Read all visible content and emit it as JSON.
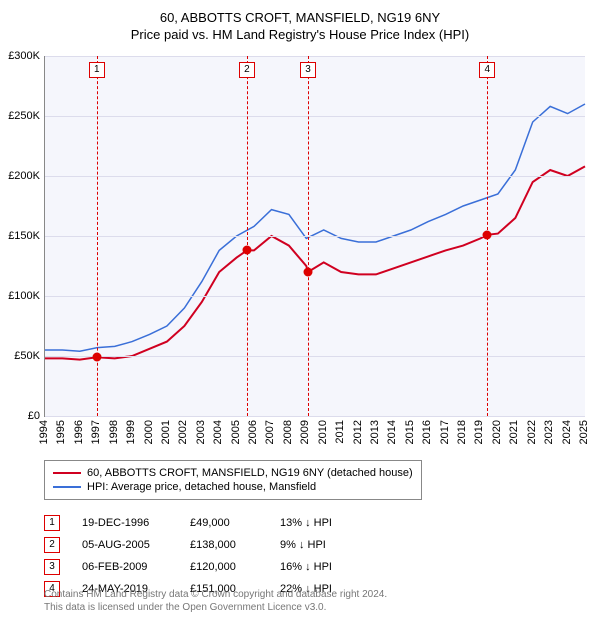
{
  "title": "60, ABBOTTS CROFT, MANSFIELD, NG19 6NY",
  "subtitle": "Price paid vs. HM Land Registry's House Price Index (HPI)",
  "chart": {
    "type": "line",
    "background_color": "#f5f6fc",
    "grid_color": "#dcdcec",
    "ylim": [
      0,
      300000
    ],
    "ytick_step": 50000,
    "yticks": [
      "£0",
      "£50K",
      "£100K",
      "£150K",
      "£200K",
      "£250K",
      "£300K"
    ],
    "xlim": [
      1994,
      2025
    ],
    "xticks": [
      1994,
      1995,
      1996,
      1997,
      1998,
      1999,
      2000,
      2001,
      2002,
      2003,
      2004,
      2005,
      2006,
      2007,
      2008,
      2009,
      2010,
      2011,
      2012,
      2013,
      2014,
      2015,
      2016,
      2017,
      2018,
      2019,
      2020,
      2021,
      2022,
      2023,
      2024,
      2025
    ],
    "label_fontsize": 11,
    "series": [
      {
        "name": "60, ABBOTTS CROFT, MANSFIELD, NG19 6NY (detached house)",
        "color": "#d00020",
        "line_width": 2,
        "points": [
          [
            1994,
            48000
          ],
          [
            1995,
            48000
          ],
          [
            1996,
            47000
          ],
          [
            1996.97,
            49000
          ],
          [
            1998,
            48000
          ],
          [
            1999,
            50000
          ],
          [
            2000,
            56000
          ],
          [
            2001,
            62000
          ],
          [
            2002,
            75000
          ],
          [
            2003,
            95000
          ],
          [
            2004,
            120000
          ],
          [
            2005,
            132000
          ],
          [
            2005.59,
            138000
          ],
          [
            2006,
            138000
          ],
          [
            2007,
            150000
          ],
          [
            2008,
            142000
          ],
          [
            2009,
            125000
          ],
          [
            2009.1,
            120000
          ],
          [
            2010,
            128000
          ],
          [
            2011,
            120000
          ],
          [
            2012,
            118000
          ],
          [
            2013,
            118000
          ],
          [
            2014,
            123000
          ],
          [
            2015,
            128000
          ],
          [
            2016,
            133000
          ],
          [
            2017,
            138000
          ],
          [
            2018,
            142000
          ],
          [
            2019,
            148000
          ],
          [
            2019.39,
            151000
          ],
          [
            2020,
            152000
          ],
          [
            2021,
            165000
          ],
          [
            2022,
            195000
          ],
          [
            2023,
            205000
          ],
          [
            2024,
            200000
          ],
          [
            2025,
            208000
          ]
        ]
      },
      {
        "name": "HPI: Average price, detached house, Mansfield",
        "color": "#3a6fd8",
        "line_width": 1.5,
        "points": [
          [
            1994,
            55000
          ],
          [
            1995,
            55000
          ],
          [
            1996,
            54000
          ],
          [
            1997,
            57000
          ],
          [
            1998,
            58000
          ],
          [
            1999,
            62000
          ],
          [
            2000,
            68000
          ],
          [
            2001,
            75000
          ],
          [
            2002,
            90000
          ],
          [
            2003,
            112000
          ],
          [
            2004,
            138000
          ],
          [
            2005,
            150000
          ],
          [
            2006,
            158000
          ],
          [
            2007,
            172000
          ],
          [
            2008,
            168000
          ],
          [
            2009,
            148000
          ],
          [
            2010,
            155000
          ],
          [
            2011,
            148000
          ],
          [
            2012,
            145000
          ],
          [
            2013,
            145000
          ],
          [
            2014,
            150000
          ],
          [
            2015,
            155000
          ],
          [
            2016,
            162000
          ],
          [
            2017,
            168000
          ],
          [
            2018,
            175000
          ],
          [
            2019,
            180000
          ],
          [
            2020,
            185000
          ],
          [
            2021,
            205000
          ],
          [
            2022,
            245000
          ],
          [
            2023,
            258000
          ],
          [
            2024,
            252000
          ],
          [
            2025,
            260000
          ]
        ]
      }
    ],
    "markers": [
      {
        "n": 1,
        "x": 1996.97,
        "y": 49000
      },
      {
        "n": 2,
        "x": 2005.59,
        "y": 138000
      },
      {
        "n": 3,
        "x": 2009.1,
        "y": 120000
      },
      {
        "n": 4,
        "x": 2019.39,
        "y": 151000
      }
    ]
  },
  "legend": [
    {
      "color": "#d00020",
      "label": "60, ABBOTTS CROFT, MANSFIELD, NG19 6NY (detached house)"
    },
    {
      "color": "#3a6fd8",
      "label": "HPI: Average price, detached house, Mansfield"
    }
  ],
  "sales": [
    {
      "n": 1,
      "date": "19-DEC-1996",
      "price": "£49,000",
      "diff": "13% ↓ HPI"
    },
    {
      "n": 2,
      "date": "05-AUG-2005",
      "price": "£138,000",
      "diff": "9% ↓ HPI"
    },
    {
      "n": 3,
      "date": "06-FEB-2009",
      "price": "£120,000",
      "diff": "16% ↓ HPI"
    },
    {
      "n": 4,
      "date": "24-MAY-2019",
      "price": "£151,000",
      "diff": "22% ↓ HPI"
    }
  ],
  "footer": {
    "line1": "Contains HM Land Registry data © Crown copyright and database right 2024.",
    "line2": "This data is licensed under the Open Government Licence v3.0."
  }
}
